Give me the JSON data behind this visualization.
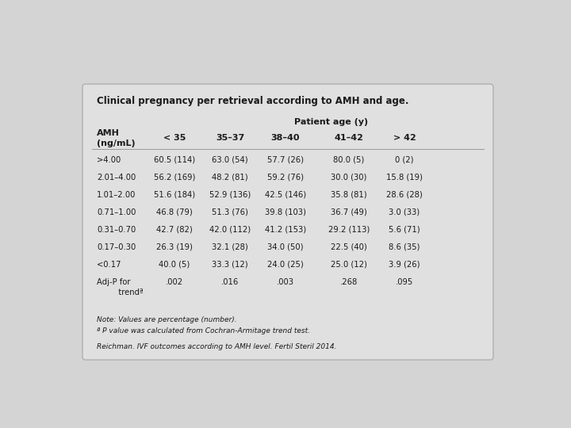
{
  "title": "Clinical pregnancy per retrieval according to AMH and age.",
  "col_header_center": "Patient age (y)",
  "age_columns": [
    "< 35",
    "35–37",
    "38–40",
    "41–42",
    "> 42"
  ],
  "amh_rows": [
    ">4.00",
    "2.01–4.00",
    "1.01–2.00",
    "0.71–1.00",
    "0.31–0.70",
    "0.17–0.30",
    "<0.17",
    "Adj-P for",
    "   trendª"
  ],
  "data": [
    [
      "60.5 (114)",
      "63.0 (54)",
      "57.7 (26)",
      "80.0 (5)",
      "0 (2)"
    ],
    [
      "56.2 (169)",
      "48.2 (81)",
      "59.2 (76)",
      "30.0 (30)",
      "15.8 (19)"
    ],
    [
      "51.6 (184)",
      "52.9 (136)",
      "42.5 (146)",
      "35.8 (81)",
      "28.6 (28)"
    ],
    [
      "46.8 (79)",
      "51.3 (76)",
      "39.8 (103)",
      "36.7 (49)",
      "3.0 (33)"
    ],
    [
      "42.7 (82)",
      "42.0 (112)",
      "41.2 (153)",
      "29.2 (113)",
      "5.6 (71)"
    ],
    [
      "26.3 (19)",
      "32.1 (28)",
      "34.0 (50)",
      "22.5 (40)",
      "8.6 (35)"
    ],
    [
      "40.0 (5)",
      "33.3 (12)",
      "24.0 (25)",
      "25.0 (12)",
      "3.9 (26)"
    ],
    [
      ".002",
      ".016",
      ".003",
      ".268",
      ".095"
    ],
    [
      "",
      "",
      "",
      "",
      ""
    ]
  ],
  "note1": "Note: Values are percentage (number).",
  "note2": "ª P value was calculated from Cochran-Armitage trend test.",
  "citation": "Reichman. IVF outcomes according to AMH level. Fertil Steril 2014.",
  "bg_color": "#d4d4d4",
  "box_color": "#e0e0e0",
  "border_color": "#b0b0b0",
  "text_color": "#1a1a1a",
  "title_fontsize": 8.5,
  "header_fontsize": 8.0,
  "data_fontsize": 7.2,
  "note_fontsize": 6.5,
  "cite_fontsize": 6.5
}
